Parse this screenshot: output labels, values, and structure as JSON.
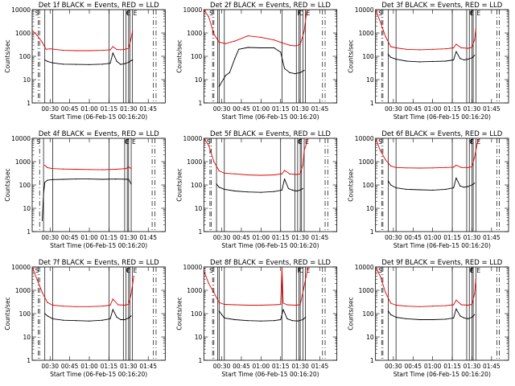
{
  "colors": {
    "events": "#000000",
    "lld": "#e00000",
    "axes": "#000000",
    "background": "#ffffff"
  },
  "shared": {
    "ylabel": "Counts/sec",
    "xlabel": "Start Time (06-Feb-15 00:16:20)",
    "xtick_labels": [
      "00:30",
      "00:45",
      "01:00",
      "01:15",
      "01:30",
      "01:45"
    ],
    "ytick_labels": [
      "1",
      "10",
      "100",
      "1000",
      "10000"
    ],
    "flag_labels": [
      "S",
      "F",
      "C",
      "E"
    ]
  },
  "chart_data": [
    {
      "type": "line",
      "title": "Det 1f BLACK = Events, RED = LLD",
      "xlabel": "Start Time (06-Feb-15 00:16:20)",
      "ylabel": "Counts/sec",
      "ylim": [
        1,
        10000
      ],
      "y_scale": "log",
      "xlim": [
        "00:16:20",
        "01:58"
      ],
      "grid": false,
      "dashed_lines": [
        "00:21",
        "00:22",
        "01:49",
        "01:51"
      ],
      "solid_lines": [
        "00:26",
        "00:32",
        "01:15",
        "01:26",
        "01:28",
        "01:30",
        "01:31",
        "01:33"
      ],
      "series": [
        {
          "name": "Events",
          "color": "#000000",
          "x": [
            "00:26",
            "00:28",
            "00:32",
            "00:40",
            "00:50",
            "01:00",
            "01:10",
            "01:16",
            "01:18",
            "01:21",
            "01:24",
            "01:27",
            "01:30",
            "01:32",
            "01:33"
          ],
          "values": [
            70,
            60,
            52,
            46,
            45,
            44,
            46,
            50,
            140,
            60,
            45,
            48,
            55,
            65,
            70
          ]
        },
        {
          "name": "LLD",
          "color": "#e00000",
          "x": [
            "00:16:20",
            "00:20",
            "00:24",
            "00:27",
            "00:30",
            "00:40",
            "00:50",
            "01:00",
            "01:10",
            "01:16",
            "01:18",
            "01:21",
            "01:24",
            "01:27",
            "01:30",
            "01:32",
            "01:33"
          ],
          "values": [
            1300,
            800,
            400,
            200,
            210,
            180,
            175,
            175,
            180,
            190,
            260,
            195,
            190,
            200,
            220,
            600,
            1200
          ]
        }
      ]
    },
    {
      "type": "line",
      "title": "Det 2f BLACK = Events, RED = LLD",
      "xlabel": "Start Time (06-Feb-15 00:16:20)",
      "ylabel": "Counts/sec",
      "ylim": [
        1,
        10000
      ],
      "y_scale": "log",
      "xlim": [
        "00:16:20",
        "01:58"
      ],
      "grid": false,
      "dashed_lines": [
        "00:23",
        "00:24",
        "01:47",
        "01:49"
      ],
      "solid_lines": [
        "00:27",
        "00:28",
        "00:32",
        "01:16",
        "01:27",
        "01:29",
        "01:30",
        "01:32",
        "01:34"
      ],
      "series": [
        {
          "name": "Events",
          "color": "#000000",
          "x": [
            "00:28",
            "00:30",
            "00:33",
            "00:36",
            "00:40",
            "00:43",
            "00:50",
            "01:00",
            "01:10",
            "01:15",
            "01:18",
            "01:22",
            "01:26",
            "01:30",
            "01:33"
          ],
          "values": [
            5,
            8,
            15,
            20,
            80,
            200,
            240,
            230,
            230,
            150,
            30,
            20,
            18,
            20,
            25
          ]
        },
        {
          "name": "LLD",
          "color": "#e00000",
          "x": [
            "00:16:20",
            "00:20",
            "00:24",
            "00:28",
            "00:33",
            "00:40",
            "00:50",
            "01:00",
            "01:10",
            "01:16",
            "01:22",
            "01:26",
            "01:30",
            "01:33",
            "01:35"
          ],
          "values": [
            10000,
            5000,
            900,
            400,
            350,
            450,
            750,
            650,
            500,
            380,
            300,
            280,
            320,
            1200,
            9000
          ]
        }
      ]
    },
    {
      "type": "line",
      "title": "Det 3f BLACK = Events, RED = LLD",
      "xlabel": "Start Time (06-Feb-15 00:16:20)",
      "ylabel": "Counts/sec",
      "ylim": [
        1,
        10000
      ],
      "y_scale": "log",
      "xlim": [
        "00:16:20",
        "01:58"
      ],
      "grid": false,
      "dashed_lines": [
        "00:21",
        "00:22",
        "01:49",
        "01:51"
      ],
      "solid_lines": [
        "00:26",
        "00:32",
        "01:15",
        "01:26",
        "01:28",
        "01:30",
        "01:31",
        "01:33"
      ],
      "series": [
        {
          "name": "Events",
          "color": "#000000",
          "x": [
            "00:26",
            "00:28",
            "00:32",
            "00:40",
            "00:50",
            "01:00",
            "01:10",
            "01:16",
            "01:18",
            "01:21",
            "01:24",
            "01:27",
            "01:30",
            "01:32"
          ],
          "values": [
            120,
            90,
            75,
            62,
            58,
            60,
            62,
            70,
            160,
            80,
            70,
            75,
            85,
            110
          ]
        },
        {
          "name": "LLD",
          "color": "#e00000",
          "x": [
            "00:16:20",
            "00:20",
            "00:24",
            "00:28",
            "00:32",
            "00:40",
            "00:50",
            "01:00",
            "01:10",
            "01:16",
            "01:18",
            "01:22",
            "01:27",
            "01:30",
            "01:32",
            "01:33"
          ],
          "values": [
            10000,
            3000,
            700,
            260,
            230,
            200,
            190,
            200,
            210,
            230,
            330,
            230,
            220,
            240,
            500,
            1500
          ]
        }
      ]
    },
    {
      "type": "line",
      "title": "Det 4f BLACK = Events, RED = LLD",
      "xlabel": "Start Time (06-Feb-15 00:16:20)",
      "ylabel": "Counts/sec",
      "ylim": [
        1,
        10000
      ],
      "y_scale": "log",
      "xlim": [
        "00:16:20",
        "01:58"
      ],
      "grid": false,
      "dashed_lines": [
        "00:22",
        "01:48",
        "01:50"
      ],
      "solid_lines": [
        "00:25",
        "00:32",
        "01:15",
        "01:27",
        "01:29",
        "01:30",
        "01:32"
      ],
      "series": [
        {
          "name": "Events",
          "color": "#000000",
          "x": [
            "00:24",
            "00:25",
            "00:26",
            "00:28",
            "00:32",
            "00:40",
            "00:50",
            "01:00",
            "01:10",
            "01:20",
            "01:30",
            "01:32"
          ],
          "values": [
            3,
            40,
            130,
            160,
            170,
            175,
            180,
            180,
            175,
            180,
            175,
            110
          ]
        },
        {
          "name": "LLD",
          "color": "#e00000",
          "x": [
            "00:26",
            "00:28",
            "00:32",
            "00:40",
            "00:50",
            "01:00",
            "01:10",
            "01:20",
            "01:28",
            "01:30",
            "01:32"
          ],
          "values": [
            700,
            550,
            500,
            480,
            470,
            460,
            450,
            470,
            500,
            600,
            500
          ]
        }
      ]
    },
    {
      "type": "line",
      "title": "Det 5f BLACK = Events, RED = LLD",
      "xlabel": "Start Time (06-Feb-15 00:16:20)",
      "ylabel": "Counts/sec",
      "ylim": [
        1,
        10000
      ],
      "y_scale": "log",
      "xlim": [
        "00:16:20",
        "01:58"
      ],
      "grid": false,
      "dashed_lines": [
        "00:21",
        "00:22",
        "01:49",
        "01:51"
      ],
      "solid_lines": [
        "00:26",
        "00:32",
        "01:15",
        "01:26",
        "01:28",
        "01:30",
        "01:31",
        "01:33"
      ],
      "series": [
        {
          "name": "Events",
          "color": "#000000",
          "x": [
            "00:26",
            "00:28",
            "00:32",
            "00:40",
            "00:50",
            "01:00",
            "01:10",
            "01:16",
            "01:18",
            "01:21",
            "01:24",
            "01:27",
            "01:30",
            "01:32"
          ],
          "values": [
            110,
            80,
            65,
            55,
            50,
            48,
            52,
            60,
            180,
            70,
            60,
            55,
            60,
            70
          ]
        },
        {
          "name": "LLD",
          "color": "#e00000",
          "x": [
            "00:16:20",
            "00:20",
            "00:24",
            "00:28",
            "00:32",
            "00:40",
            "00:50",
            "01:00",
            "01:10",
            "01:16",
            "01:18",
            "01:22",
            "01:27",
            "01:30",
            "01:32",
            "01:33",
            "01:36"
          ],
          "values": [
            10000,
            5000,
            1000,
            400,
            320,
            300,
            270,
            260,
            270,
            300,
            420,
            300,
            280,
            300,
            700,
            3000,
            10000
          ]
        }
      ]
    },
    {
      "type": "line",
      "title": "Det 6f BLACK = Events, RED = LLD",
      "xlabel": "Start Time (06-Feb-15 00:16:20)",
      "ylabel": "Counts/sec",
      "ylim": [
        1,
        10000
      ],
      "y_scale": "log",
      "xlim": [
        "00:16:20",
        "01:58"
      ],
      "grid": false,
      "dashed_lines": [
        "00:21",
        "00:22",
        "01:49",
        "01:51"
      ],
      "solid_lines": [
        "00:26",
        "00:32",
        "01:15",
        "01:26",
        "01:28",
        "01:30",
        "01:31",
        "01:33"
      ],
      "series": [
        {
          "name": "Events",
          "color": "#000000",
          "x": [
            "00:26",
            "00:28",
            "00:32",
            "00:40",
            "00:50",
            "01:00",
            "01:10",
            "01:16",
            "01:18",
            "01:21",
            "01:24",
            "01:27",
            "01:30",
            "01:32"
          ],
          "values": [
            150,
            100,
            75,
            65,
            62,
            60,
            65,
            75,
            200,
            90,
            80,
            85,
            100,
            120
          ]
        },
        {
          "name": "LLD",
          "color": "#e00000",
          "x": [
            "00:16:20",
            "00:20",
            "00:24",
            "00:28",
            "00:32",
            "00:40",
            "00:50",
            "01:00",
            "01:10",
            "01:16",
            "01:18",
            "01:22",
            "01:27",
            "01:30",
            "01:32",
            "01:34",
            "01:36"
          ],
          "values": [
            10000,
            3000,
            1200,
            650,
            560,
            540,
            530,
            540,
            560,
            580,
            700,
            560,
            560,
            600,
            1500,
            6000,
            10000
          ]
        }
      ]
    },
    {
      "type": "line",
      "title": "Det 7f BLACK = Events, RED = LLD",
      "xlabel": "Start Time (06-Feb-15 00:16:20)",
      "ylabel": "Counts/sec",
      "ylim": [
        1,
        10000
      ],
      "y_scale": "log",
      "xlim": [
        "00:16:20",
        "01:58"
      ],
      "grid": false,
      "dashed_lines": [
        "00:21",
        "00:22",
        "01:49",
        "01:51"
      ],
      "solid_lines": [
        "00:26",
        "00:32",
        "01:15",
        "01:26",
        "01:28",
        "01:30",
        "01:31",
        "01:33"
      ],
      "series": [
        {
          "name": "Events",
          "color": "#000000",
          "x": [
            "00:26",
            "00:28",
            "00:32",
            "00:40",
            "00:50",
            "01:00",
            "01:10",
            "01:16",
            "01:18",
            "01:21",
            "01:24",
            "01:27",
            "01:30",
            "01:32"
          ],
          "values": [
            100,
            80,
            60,
            52,
            50,
            48,
            52,
            60,
            150,
            70,
            55,
            55,
            65,
            80
          ]
        },
        {
          "name": "LLD",
          "color": "#e00000",
          "x": [
            "00:16:20",
            "00:20",
            "00:24",
            "00:28",
            "00:32",
            "00:40",
            "00:50",
            "01:00",
            "01:10",
            "01:16",
            "01:18",
            "01:22",
            "01:27",
            "01:30",
            "01:32",
            "01:34"
          ],
          "values": [
            10000,
            3000,
            800,
            300,
            230,
            210,
            200,
            200,
            210,
            230,
            420,
            240,
            230,
            250,
            700,
            4000
          ]
        }
      ]
    },
    {
      "type": "line",
      "title": "Det 8f BLACK = Events, RED = LLD",
      "xlabel": "Start Time (06-Feb-15 00:16:20)",
      "ylabel": "Counts/sec",
      "ylim": [
        1,
        10000
      ],
      "y_scale": "log",
      "xlim": [
        "00:16:20",
        "01:58"
      ],
      "grid": false,
      "dashed_lines": [
        "00:23",
        "00:24",
        "01:47",
        "01:49"
      ],
      "solid_lines": [
        "00:27",
        "00:28",
        "00:32",
        "01:16",
        "01:27",
        "01:29",
        "01:30",
        "01:32",
        "01:34"
      ],
      "series": [
        {
          "name": "Events",
          "color": "#000000",
          "x": [
            "00:28",
            "00:30",
            "00:32",
            "00:40",
            "00:50",
            "01:00",
            "01:10",
            "01:15",
            "01:17",
            "01:20",
            "01:24",
            "01:28",
            "01:32",
            "01:34"
          ],
          "values": [
            130,
            90,
            65,
            55,
            50,
            48,
            50,
            55,
            150,
            60,
            50,
            48,
            55,
            70
          ]
        },
        {
          "name": "LLD",
          "color": "#e00000",
          "x": [
            "00:16:20",
            "00:20",
            "00:24",
            "00:28",
            "00:32",
            "00:40",
            "00:50",
            "01:00",
            "01:10",
            "01:15",
            "01:16",
            "01:17",
            "01:20",
            "01:26",
            "01:30",
            "01:33",
            "01:36"
          ],
          "values": [
            7000,
            2000,
            800,
            300,
            250,
            240,
            230,
            230,
            240,
            250,
            9000,
            280,
            240,
            230,
            240,
            1500,
            10000
          ]
        }
      ]
    },
    {
      "type": "line",
      "title": "Det 9f BLACK = Events, RED = LLD",
      "xlabel": "Start Time (06-Feb-15 00:16:20)",
      "ylabel": "Counts/sec",
      "ylim": [
        1,
        10000
      ],
      "y_scale": "log",
      "xlim": [
        "00:16:20",
        "01:58"
      ],
      "grid": false,
      "dashed_lines": [
        "00:21",
        "00:22",
        "01:49",
        "01:51"
      ],
      "solid_lines": [
        "00:26",
        "00:32",
        "01:15",
        "01:26",
        "01:28",
        "01:30",
        "01:31",
        "01:33"
      ],
      "series": [
        {
          "name": "Events",
          "color": "#000000",
          "x": [
            "00:26",
            "00:28",
            "00:32",
            "00:40",
            "00:50",
            "01:00",
            "01:10",
            "01:16",
            "01:18",
            "01:21",
            "01:24",
            "01:27",
            "01:30",
            "01:32"
          ],
          "values": [
            130,
            90,
            70,
            60,
            55,
            55,
            58,
            65,
            160,
            80,
            65,
            60,
            70,
            90
          ]
        },
        {
          "name": "LLD",
          "color": "#e00000",
          "x": [
            "00:16:20",
            "00:20",
            "00:24",
            "00:28",
            "00:32",
            "00:40",
            "00:50",
            "01:00",
            "01:10",
            "01:16",
            "01:18",
            "01:22",
            "01:27",
            "01:30",
            "01:32",
            "01:33"
          ],
          "values": [
            10000,
            4000,
            800,
            280,
            230,
            210,
            200,
            210,
            220,
            240,
            380,
            240,
            230,
            250,
            700,
            3000
          ]
        }
      ]
    }
  ]
}
